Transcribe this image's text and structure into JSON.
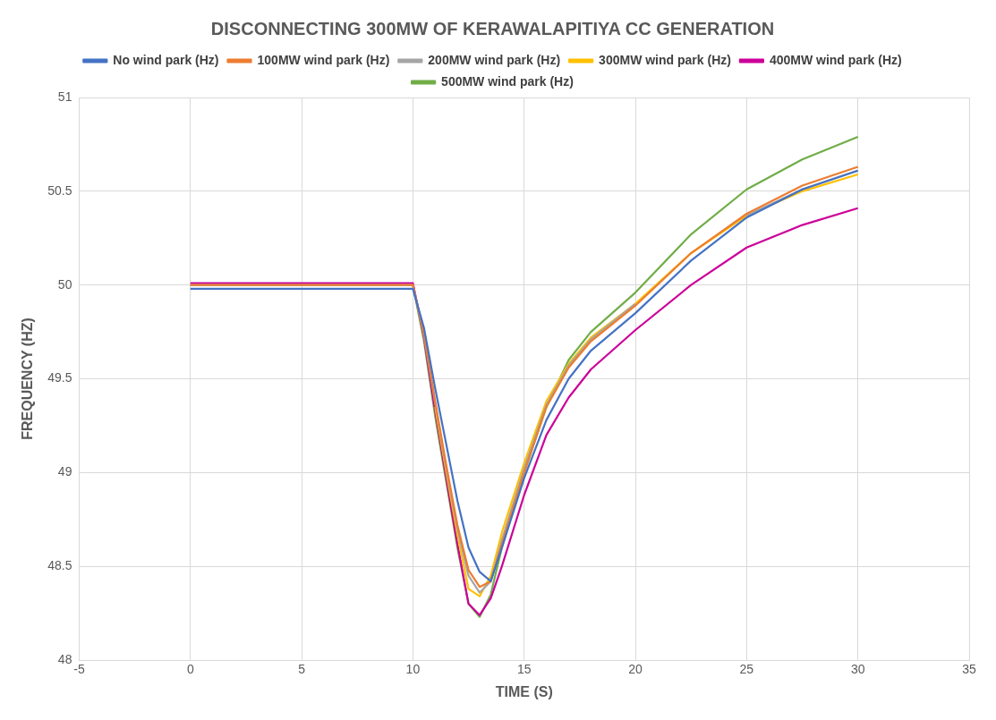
{
  "chart_data": {
    "type": "line",
    "title": "DISCONNECTING 300MW OF KERAWALAPITIYA CC GENERATION",
    "xlabel": "TIME (S)",
    "ylabel": "FREQUENCY (HZ)",
    "x": [
      0,
      10,
      10.5,
      11,
      11.5,
      12,
      12.5,
      13,
      13.5,
      14,
      15,
      16,
      17,
      18,
      20,
      22.5,
      25,
      27.5,
      30
    ],
    "series": [
      {
        "name": "No wind park (Hz)",
        "color": "#4472c4",
        "values": [
          49.98,
          49.98,
          49.77,
          49.45,
          49.15,
          48.85,
          48.6,
          48.47,
          48.42,
          48.6,
          48.97,
          49.28,
          49.5,
          49.65,
          49.85,
          50.13,
          50.36,
          50.51,
          50.61
        ]
      },
      {
        "name": "100MW wind park (Hz)",
        "color": "#ed7d31",
        "values": [
          50,
          50,
          49.74,
          49.38,
          49.04,
          48.72,
          48.48,
          48.39,
          48.42,
          48.62,
          49.0,
          49.35,
          49.56,
          49.7,
          49.89,
          50.17,
          50.38,
          50.53,
          50.63
        ]
      },
      {
        "name": "200MW wind park (Hz)",
        "color": "#a5a5a5",
        "values": [
          50,
          50,
          49.73,
          49.37,
          49.02,
          48.7,
          48.45,
          48.36,
          48.42,
          48.64,
          49.02,
          49.36,
          49.57,
          49.71,
          49.9,
          null,
          50.37,
          50.51,
          50.61
        ]
      },
      {
        "name": "300MW wind park (Hz)",
        "color": "#ffc000",
        "values": [
          null,
          null,
          null,
          49.35,
          49.0,
          48.67,
          48.38,
          48.34,
          48.45,
          48.68,
          49.05,
          49.38,
          49.58,
          49.72,
          49.9,
          50.17,
          50.37,
          50.5,
          50.59
        ]
      },
      {
        "name": "400MW wind park (Hz)",
        "color": "#cc0099",
        "values": [
          50.01,
          50.01,
          49.72,
          49.33,
          48.97,
          48.62,
          48.3,
          48.24,
          48.33,
          48.5,
          48.88,
          49.2,
          49.4,
          49.55,
          49.76,
          50.0,
          50.2,
          50.32,
          50.41
        ]
      },
      {
        "name": "500MW wind park (Hz)",
        "color": "#70ad47",
        "values": [
          50,
          50,
          49.7,
          49.3,
          48.95,
          48.6,
          48.3,
          48.23,
          48.35,
          48.6,
          49.0,
          49.35,
          49.6,
          49.75,
          49.96,
          50.27,
          50.51,
          50.67,
          50.79
        ]
      }
    ],
    "xlim": [
      -5,
      35
    ],
    "xticks": [
      -5,
      0,
      5,
      10,
      15,
      20,
      25,
      30,
      35
    ],
    "ylim": [
      48,
      51
    ],
    "yticks": [
      48,
      48.5,
      49,
      49.5,
      50,
      50.5,
      51
    ],
    "grid": true,
    "legend": "top",
    "marker": "none",
    "line_style": "solid"
  }
}
